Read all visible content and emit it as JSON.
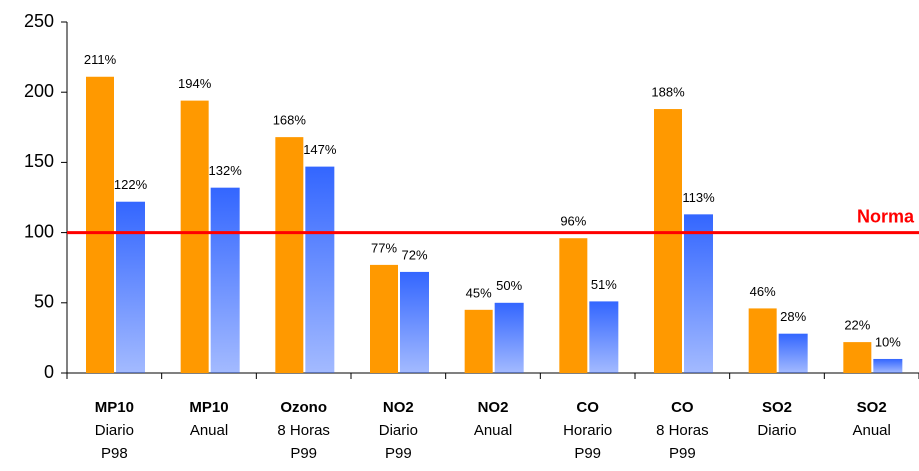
{
  "chart_data": {
    "type": "bar",
    "categories": [
      [
        "MP10",
        "Diario",
        "P98"
      ],
      [
        "MP10",
        "Anual"
      ],
      [
        "Ozono",
        "8 Horas",
        "P99"
      ],
      [
        "NO2",
        "Diario",
        "P99"
      ],
      [
        "NO2",
        "Anual"
      ],
      [
        "CO",
        "Horario",
        "P99"
      ],
      [
        "CO",
        "8 Horas",
        "P99"
      ],
      [
        "SO2",
        "Diario"
      ],
      [
        "SO2",
        "Anual"
      ]
    ],
    "series": [
      {
        "color": "#ff9900",
        "values": [
          211,
          194,
          168,
          77,
          45,
          96,
          188,
          46,
          22
        ],
        "value_labels": [
          "211%",
          "194%",
          "168%",
          "77%",
          "45%",
          "96%",
          "188%",
          "46%",
          "22%"
        ]
      },
      {
        "color": "#3366ff",
        "gradient": true,
        "values": [
          122,
          132,
          147,
          72,
          50,
          51,
          113,
          28,
          10
        ],
        "value_labels": [
          "122%",
          "132%",
          "147%",
          "72%",
          "50%",
          "51%",
          "113%",
          "28%",
          "10%"
        ]
      }
    ],
    "ylim": [
      0,
      250
    ],
    "yticks": [
      0,
      50,
      100,
      150,
      200,
      250
    ],
    "reference_line": {
      "value": 100,
      "label": "Norma",
      "color": "#ff0000"
    }
  }
}
